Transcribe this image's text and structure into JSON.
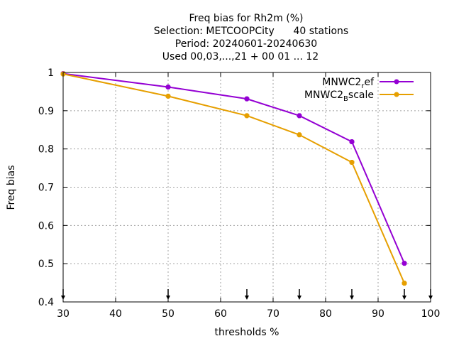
{
  "chart_data": {
    "type": "line",
    "title_lines": [
      "Freq bias  for Rh2m (%)",
      "Selection: METCOOPCity      40 stations",
      "Period: 20240601-20240630",
      "Used 00,03,...,21 + 00 01 ... 12"
    ],
    "xlabel": "thresholds %",
    "ylabel": "Freq bias",
    "xlim": [
      30,
      100
    ],
    "ylim": [
      0.4,
      1.0
    ],
    "xticks": [
      30,
      40,
      50,
      60,
      70,
      80,
      90,
      100
    ],
    "yticks": [
      0.4,
      0.5,
      0.6,
      0.7,
      0.8,
      0.9,
      1.0
    ],
    "ytick_labels": [
      "0.4",
      "0.5",
      "0.6",
      "0.7",
      "0.8",
      "0.9",
      "1"
    ],
    "grid": true,
    "legend_position": "top-right",
    "threshold_markers_x": [
      30,
      50,
      65,
      75,
      85,
      95,
      100
    ],
    "series": [
      {
        "name": "MNWC2_ref",
        "legend_main": "MNWC2",
        "legend_sub": "r",
        "legend_tail": "ef",
        "color": "#9400d3",
        "x": [
          30,
          50,
          65,
          75,
          85,
          95
        ],
        "y": [
          0.997,
          0.962,
          0.931,
          0.887,
          0.819,
          0.501
        ]
      },
      {
        "name": "MNWC2_Bscale",
        "legend_main": "MNWC2",
        "legend_sub": "B",
        "legend_tail": "scale",
        "color": "#e69f00",
        "x": [
          30,
          50,
          65,
          75,
          85,
          95
        ],
        "y": [
          0.996,
          0.938,
          0.887,
          0.837,
          0.765,
          0.449
        ]
      }
    ]
  }
}
